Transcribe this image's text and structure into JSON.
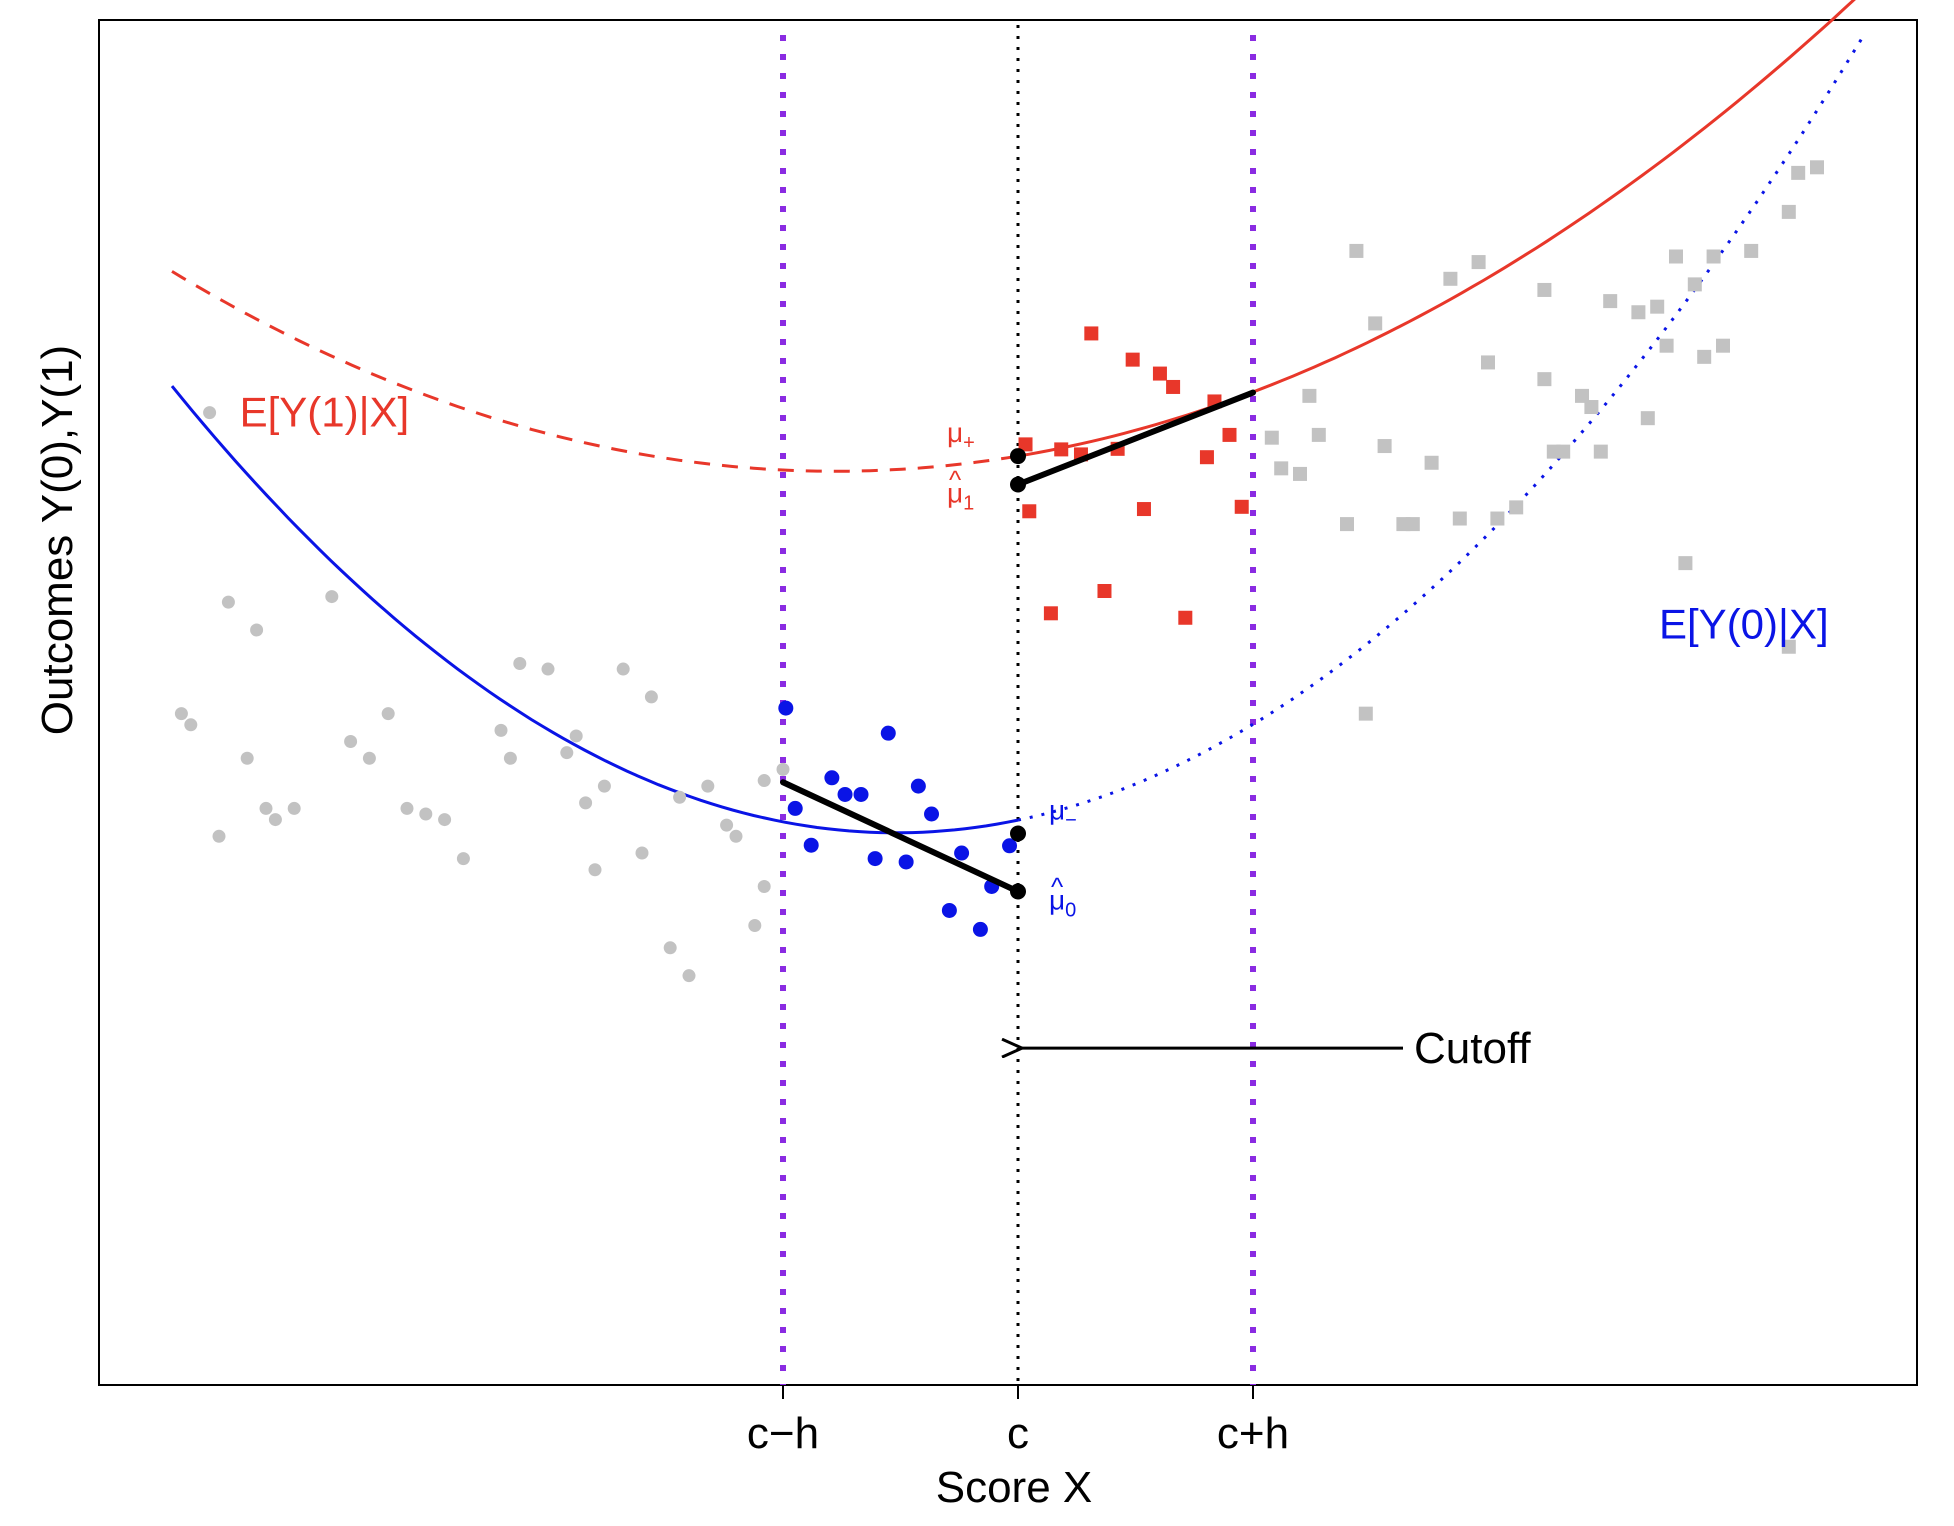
{
  "chart_data": {
    "type": "scatter",
    "title": "",
    "xlabel": "Score X",
    "ylabel": "Outcomes Y(0),Y(1)",
    "xlim": [
      -1.0,
      1.0
    ],
    "ylim": [
      -1.0,
      1.0
    ],
    "grid": false,
    "x_ticks": [
      {
        "value": -0.25,
        "label": "c−h"
      },
      {
        "value": 0.0,
        "label": "c"
      },
      {
        "value": 0.25,
        "label": "c+h"
      }
    ],
    "colors": {
      "treated": "#e8372a",
      "control": "#0a14e6",
      "outside": "#c2c2c2",
      "bandwidth": "#8a2be2",
      "fit": "#000000",
      "cutoff": "#000000"
    },
    "curves": [
      {
        "name": "E[Y(1)|X]",
        "label": "E[Y(1)|X]",
        "color": "#e8372a",
        "coef": [
          0.442,
          0.28,
          0.72
        ],
        "segments": [
          {
            "from": -0.9,
            "to": 0.0,
            "style": "dashed"
          },
          {
            "from": 0.0,
            "to": 0.9,
            "style": "solid"
          }
        ]
      },
      {
        "name": "E[Y(0)|X]",
        "label": "E[Y(0)|X]",
        "color": "#0a14e6",
        "coef": [
          -0.211,
          0.35,
          1.35
        ],
        "segments": [
          {
            "from": -0.9,
            "to": 0.0,
            "style": "solid"
          },
          {
            "from": 0.0,
            "to": 0.9,
            "style": "dotted"
          }
        ]
      }
    ],
    "curve_labels": [
      {
        "text": "E[Y(1)|X]",
        "x": -0.86,
        "y": 0.52,
        "color": "#e8372a"
      },
      {
        "text": "E[Y(0)|X]",
        "x": 0.65,
        "y": 0.14,
        "color": "#0a14e6"
      }
    ],
    "fit_lines": [
      {
        "name": "local fit treated",
        "x": [
          0.0,
          0.25
        ],
        "y": [
          0.391,
          0.556
        ]
      },
      {
        "name": "local fit control",
        "x": [
          -0.25,
          0.0
        ],
        "y": [
          -0.143,
          -0.339
        ]
      }
    ],
    "point_estimates": [
      {
        "name": "mu_plus",
        "label": "μ",
        "sub": "+",
        "hat": false,
        "x": 0.0,
        "y": 0.442,
        "color": "#e8372a",
        "side": "left"
      },
      {
        "name": "mu1_hat",
        "label": "μ",
        "sub": "1",
        "hat": true,
        "x": 0.0,
        "y": 0.391,
        "color": "#e8372a",
        "side": "left"
      },
      {
        "name": "mu_minus",
        "label": "μ",
        "sub": "−",
        "hat": false,
        "x": 0.0,
        "y": -0.235,
        "color": "#0a14e6",
        "side": "right"
      },
      {
        "name": "mu0_hat",
        "label": "μ",
        "sub": "0",
        "hat": true,
        "x": 0.0,
        "y": -0.339,
        "color": "#0a14e6",
        "side": "right"
      }
    ],
    "bandwidth": [
      -0.25,
      0.25
    ],
    "cutoff": 0.0,
    "annotation": {
      "text": "Cutoff",
      "arrow_from": [
        0.4,
        -0.62
      ],
      "arrow_to": [
        0.0,
        -0.62
      ]
    },
    "series": [
      {
        "name": "treated in bandwidth",
        "marker": "square",
        "color": "#e8372a",
        "points": [
          [
            0.008,
            0.463
          ],
          [
            0.046,
            0.454
          ],
          [
            0.067,
            0.445
          ],
          [
            0.106,
            0.455
          ],
          [
            0.078,
            0.662
          ],
          [
            0.122,
            0.615
          ],
          [
            0.151,
            0.59
          ],
          [
            0.165,
            0.566
          ],
          [
            0.209,
            0.54
          ],
          [
            0.201,
            0.44
          ],
          [
            0.225,
            0.48
          ],
          [
            0.238,
            0.351
          ],
          [
            0.012,
            0.343
          ],
          [
            0.134,
            0.347
          ],
          [
            0.092,
            0.2
          ],
          [
            0.035,
            0.16
          ],
          [
            0.178,
            0.152
          ]
        ]
      },
      {
        "name": "control in bandwidth",
        "marker": "circle",
        "color": "#0a14e6",
        "points": [
          [
            -0.247,
            -0.01
          ],
          [
            -0.237,
            -0.19
          ],
          [
            -0.198,
            -0.135
          ],
          [
            -0.184,
            -0.165
          ],
          [
            -0.167,
            -0.165
          ],
          [
            -0.138,
            -0.055
          ],
          [
            -0.106,
            -0.15
          ],
          [
            -0.092,
            -0.2
          ],
          [
            -0.22,
            -0.256
          ],
          [
            -0.152,
            -0.28
          ],
          [
            -0.119,
            -0.286
          ],
          [
            -0.06,
            -0.27
          ],
          [
            -0.009,
            -0.257
          ],
          [
            -0.028,
            -0.33
          ],
          [
            -0.073,
            -0.373
          ],
          [
            -0.04,
            -0.407
          ]
        ]
      },
      {
        "name": "control outside bandwidth",
        "marker": "circle",
        "color": "#c2c2c2",
        "points": [
          [
            -0.86,
            0.52
          ],
          [
            -0.84,
            0.18
          ],
          [
            -0.73,
            0.19
          ],
          [
            -0.81,
            0.13
          ],
          [
            -0.88,
            -0.04
          ],
          [
            -0.89,
            -0.02
          ],
          [
            -0.82,
            -0.1
          ],
          [
            -0.8,
            -0.19
          ],
          [
            -0.77,
            -0.19
          ],
          [
            -0.79,
            -0.21
          ],
          [
            -0.71,
            -0.07
          ],
          [
            -0.69,
            -0.1
          ],
          [
            -0.67,
            -0.02
          ],
          [
            -0.65,
            -0.19
          ],
          [
            -0.63,
            -0.2
          ],
          [
            -0.61,
            -0.21
          ],
          [
            -0.59,
            -0.28
          ],
          [
            -0.55,
            -0.05
          ],
          [
            -0.54,
            -0.1
          ],
          [
            -0.53,
            0.07
          ],
          [
            -0.5,
            0.06
          ],
          [
            -0.48,
            -0.09
          ],
          [
            -0.46,
            -0.18
          ],
          [
            -0.44,
            -0.15
          ],
          [
            -0.42,
            0.06
          ],
          [
            -0.47,
            -0.06
          ],
          [
            -0.39,
            0.01
          ],
          [
            -0.4,
            -0.27
          ],
          [
            -0.37,
            -0.44
          ],
          [
            -0.35,
            -0.49
          ],
          [
            -0.36,
            -0.17
          ],
          [
            -0.33,
            -0.15
          ],
          [
            -0.31,
            -0.22
          ],
          [
            -0.3,
            -0.24
          ],
          [
            -0.27,
            -0.14
          ],
          [
            -0.28,
            -0.4
          ],
          [
            -0.25,
            -0.12
          ],
          [
            -0.27,
            -0.33
          ],
          [
            -0.45,
            -0.3
          ],
          [
            -0.85,
            -0.24
          ]
        ]
      },
      {
        "name": "treated outside bandwidth",
        "marker": "square",
        "color": "#c2c2c2",
        "points": [
          [
            0.27,
            0.475
          ],
          [
            0.28,
            0.42
          ],
          [
            0.3,
            0.41
          ],
          [
            0.31,
            0.55
          ],
          [
            0.32,
            0.48
          ],
          [
            0.35,
            0.32
          ],
          [
            0.36,
            0.81
          ],
          [
            0.38,
            0.68
          ],
          [
            0.39,
            0.46
          ],
          [
            0.41,
            0.32
          ],
          [
            0.42,
            0.32
          ],
          [
            0.44,
            0.43
          ],
          [
            0.46,
            0.76
          ],
          [
            0.47,
            0.33
          ],
          [
            0.49,
            0.79
          ],
          [
            0.5,
            0.61
          ],
          [
            0.51,
            0.33
          ],
          [
            0.53,
            0.35
          ],
          [
            0.56,
            0.58
          ],
          [
            0.57,
            0.45
          ],
          [
            0.58,
            0.45
          ],
          [
            0.6,
            0.55
          ],
          [
            0.61,
            0.53
          ],
          [
            0.62,
            0.45
          ],
          [
            0.63,
            0.72
          ],
          [
            0.66,
            0.7
          ],
          [
            0.67,
            0.51
          ],
          [
            0.68,
            0.71
          ],
          [
            0.7,
            0.8
          ],
          [
            0.71,
            0.25
          ],
          [
            0.72,
            0.75
          ],
          [
            0.73,
            0.62
          ],
          [
            0.74,
            0.8
          ],
          [
            0.75,
            0.64
          ],
          [
            0.78,
            0.81
          ],
          [
            0.82,
            0.88
          ],
          [
            0.83,
            0.95
          ],
          [
            0.85,
            0.96
          ],
          [
            0.82,
            0.1
          ],
          [
            0.69,
            0.64
          ],
          [
            0.56,
            0.74
          ],
          [
            0.37,
            -0.02
          ]
        ]
      }
    ]
  }
}
